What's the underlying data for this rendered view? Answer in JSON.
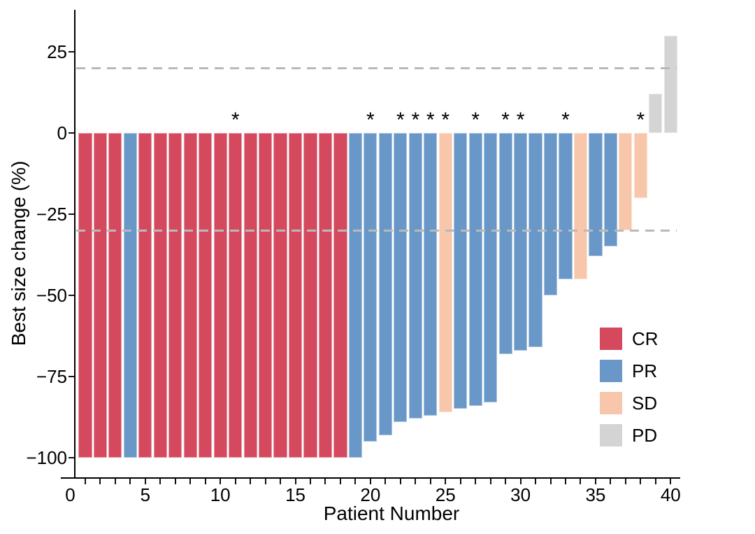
{
  "figure": {
    "y_axis": {
      "title": "Best size change (%)",
      "ticks": [
        {
          "value": 25,
          "label": "25"
        },
        {
          "value": 0,
          "label": "0"
        },
        {
          "value": -25,
          "label": "−25"
        },
        {
          "value": -50,
          "label": "−50"
        },
        {
          "value": -75,
          "label": "−75"
        },
        {
          "value": -100,
          "label": "−100"
        }
      ]
    },
    "x_axis": {
      "title": "Patient Number",
      "major_ticks": [
        {
          "value": 0,
          "label": "0"
        },
        {
          "value": 5,
          "label": "5"
        },
        {
          "value": 10,
          "label": "10"
        },
        {
          "value": 15,
          "label": "15"
        },
        {
          "value": 20,
          "label": "20"
        },
        {
          "value": 25,
          "label": "25"
        },
        {
          "value": 30,
          "label": "30"
        },
        {
          "value": 35,
          "label": "35"
        },
        {
          "value": 40,
          "label": "40"
        }
      ]
    },
    "legend": [
      {
        "label": "CR",
        "color": "#d4495e"
      },
      {
        "label": "PR",
        "color": "#6997c7"
      },
      {
        "label": "SD",
        "color": "#f8c6aa"
      },
      {
        "label": "PD",
        "color": "#d4d4d4"
      }
    ],
    "annotation_symbol": "*",
    "colors": {
      "reference_line": "#b9b9b9",
      "axis": "#000000",
      "text": "#000000",
      "background": "#ffffff"
    }
  },
  "chart_data": {
    "type": "bar",
    "title": "",
    "xlabel": "Patient Number",
    "ylabel": "Best size change (%)",
    "xlim": [
      0,
      40.6
    ],
    "ylim": [
      -106,
      38
    ],
    "grid": false,
    "legend_position": "inside-right",
    "reference_lines": [
      20,
      -30
    ],
    "x": [
      1,
      2,
      3,
      4,
      5,
      6,
      7,
      8,
      9,
      10,
      11,
      12,
      13,
      14,
      15,
      16,
      17,
      18,
      19,
      20,
      21,
      22,
      23,
      24,
      25,
      26,
      27,
      28,
      29,
      30,
      31,
      32,
      33,
      34,
      35,
      36,
      37,
      38,
      39,
      40
    ],
    "values": [
      -100,
      -100,
      -100,
      -100,
      -100,
      -100,
      -100,
      -100,
      -100,
      -100,
      -100,
      -100,
      -100,
      -100,
      -100,
      -100,
      -100,
      -100,
      -100,
      -95,
      -93,
      -89,
      -88,
      -87,
      -86,
      -85,
      -84,
      -83,
      -68,
      -67,
      -66,
      -50,
      -45,
      -45,
      -38,
      -35,
      -30,
      -20,
      12,
      30
    ],
    "group": [
      "CR",
      "CR",
      "CR",
      "PR",
      "CR",
      "CR",
      "CR",
      "CR",
      "CR",
      "CR",
      "CR",
      "CR",
      "CR",
      "CR",
      "CR",
      "CR",
      "CR",
      "CR",
      "PR",
      "PR",
      "PR",
      "PR",
      "PR",
      "PR",
      "SD",
      "PR",
      "PR",
      "PR",
      "PR",
      "PR",
      "PR",
      "PR",
      "PR",
      "SD",
      "PR",
      "PR",
      "SD",
      "SD",
      "PD",
      "PD"
    ],
    "group_colors": {
      "CR": "#d4495e",
      "PR": "#6997c7",
      "SD": "#f8c6aa",
      "PD": "#d4d4d4"
    },
    "starred_patients": [
      11,
      20,
      22,
      23,
      24,
      25,
      27,
      29,
      30,
      33,
      38
    ]
  }
}
